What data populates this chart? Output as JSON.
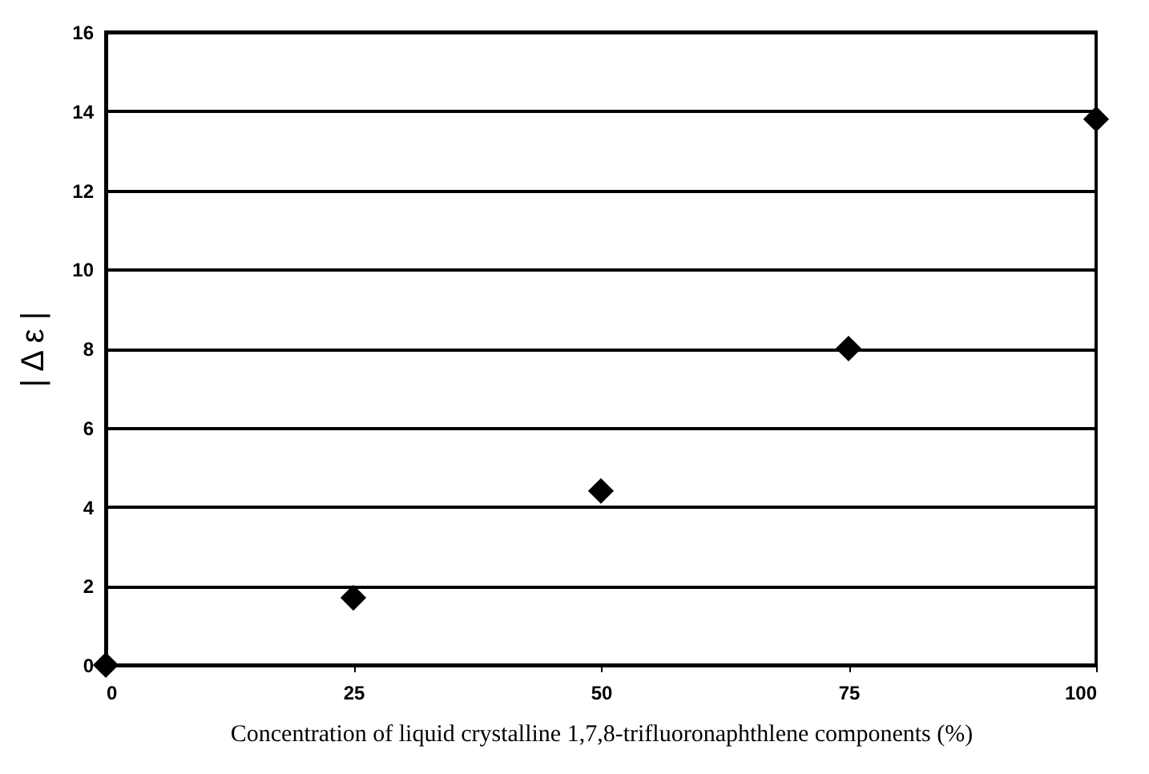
{
  "chart_data": {
    "type": "scatter",
    "xlabel": "Concentration of liquid crystalline 1,7,8-trifluoronaphthlene components (%)",
    "ylabel": "| Δ ε |",
    "x": [
      0,
      25,
      50,
      75,
      100
    ],
    "series": [
      {
        "color": "#000000",
        "values": [
          0,
          1.7,
          4.4,
          8.0,
          13.8
        ]
      }
    ],
    "xlim": [
      0,
      100
    ],
    "xticks": [
      0,
      25,
      50,
      75,
      100
    ],
    "ylim": [
      0,
      16
    ],
    "yticks": [
      0,
      2,
      4,
      6,
      8,
      10,
      12,
      14,
      16
    ],
    "grid": "y",
    "marker": "diamond"
  }
}
